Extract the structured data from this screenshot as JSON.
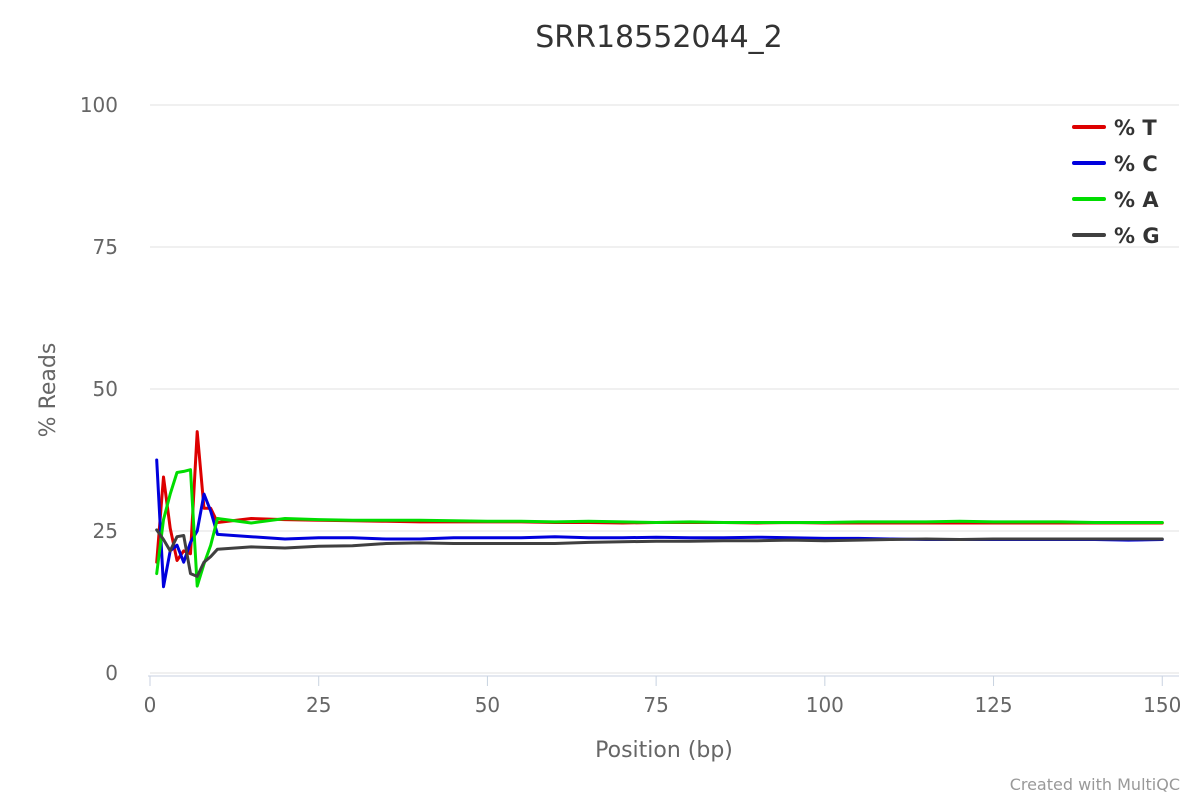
{
  "chart_data": {
    "type": "line",
    "title": "SRR18552044_2",
    "xlabel": "Position (bp)",
    "ylabel": "% Reads",
    "xlim": [
      0,
      151
    ],
    "ylim": [
      0,
      100
    ],
    "xticks": [
      0,
      25,
      50,
      75,
      100,
      125,
      150
    ],
    "yticks": [
      0,
      25,
      50,
      75,
      100
    ],
    "grid": true,
    "legend_position": "top-right",
    "x": [
      1,
      2,
      3,
      4,
      5,
      6,
      7,
      8,
      9,
      10,
      15,
      20,
      25,
      30,
      35,
      40,
      45,
      50,
      55,
      60,
      65,
      70,
      75,
      80,
      85,
      90,
      95,
      100,
      105,
      110,
      115,
      120,
      125,
      130,
      135,
      140,
      145,
      150
    ],
    "series": [
      {
        "name": "% T",
        "color": "#dd0000",
        "values": [
          19.5,
          34.5,
          25.5,
          19.8,
          21.5,
          21.0,
          42.5,
          29.0,
          29.0,
          26.5,
          27.2,
          27.0,
          26.9,
          26.8,
          26.7,
          26.6,
          26.6,
          26.6,
          26.6,
          26.5,
          26.5,
          26.4,
          26.5,
          26.5,
          26.5,
          26.4,
          26.5,
          26.4,
          26.4,
          26.4,
          26.4,
          26.4,
          26.4,
          26.4,
          26.4,
          26.4,
          26.4,
          26.4
        ]
      },
      {
        "name": "% C",
        "color": "#0000dd",
        "values": [
          37.5,
          15.2,
          21.5,
          22.5,
          19.5,
          23.0,
          25.0,
          31.5,
          28.5,
          24.4,
          24.0,
          23.6,
          23.8,
          23.8,
          23.6,
          23.6,
          23.8,
          23.8,
          23.8,
          24.0,
          23.8,
          23.8,
          23.9,
          23.8,
          23.8,
          23.9,
          23.8,
          23.7,
          23.7,
          23.6,
          23.5,
          23.5,
          23.5,
          23.5,
          23.5,
          23.5,
          23.4,
          23.5
        ]
      },
      {
        "name": "% A",
        "color": "#00dd00",
        "values": [
          17.5,
          27.0,
          31.5,
          35.3,
          35.5,
          35.8,
          15.3,
          19.2,
          22.5,
          27.2,
          26.4,
          27.2,
          27.0,
          26.9,
          26.9,
          26.9,
          26.8,
          26.7,
          26.7,
          26.6,
          26.7,
          26.6,
          26.5,
          26.6,
          26.5,
          26.5,
          26.5,
          26.5,
          26.6,
          26.6,
          26.6,
          26.7,
          26.6,
          26.6,
          26.6,
          26.5,
          26.5,
          26.5
        ]
      },
      {
        "name": "% G",
        "color": "#404040",
        "values": [
          25.2,
          23.5,
          21.5,
          24.0,
          24.2,
          17.5,
          17.0,
          19.5,
          20.5,
          21.8,
          22.2,
          22.0,
          22.3,
          22.4,
          22.8,
          22.9,
          22.8,
          22.8,
          22.8,
          22.8,
          23.0,
          23.1,
          23.2,
          23.2,
          23.3,
          23.3,
          23.4,
          23.3,
          23.4,
          23.5,
          23.6,
          23.5,
          23.6,
          23.6,
          23.6,
          23.6,
          23.6,
          23.6
        ]
      }
    ]
  },
  "credit": "Created with MultiQC"
}
